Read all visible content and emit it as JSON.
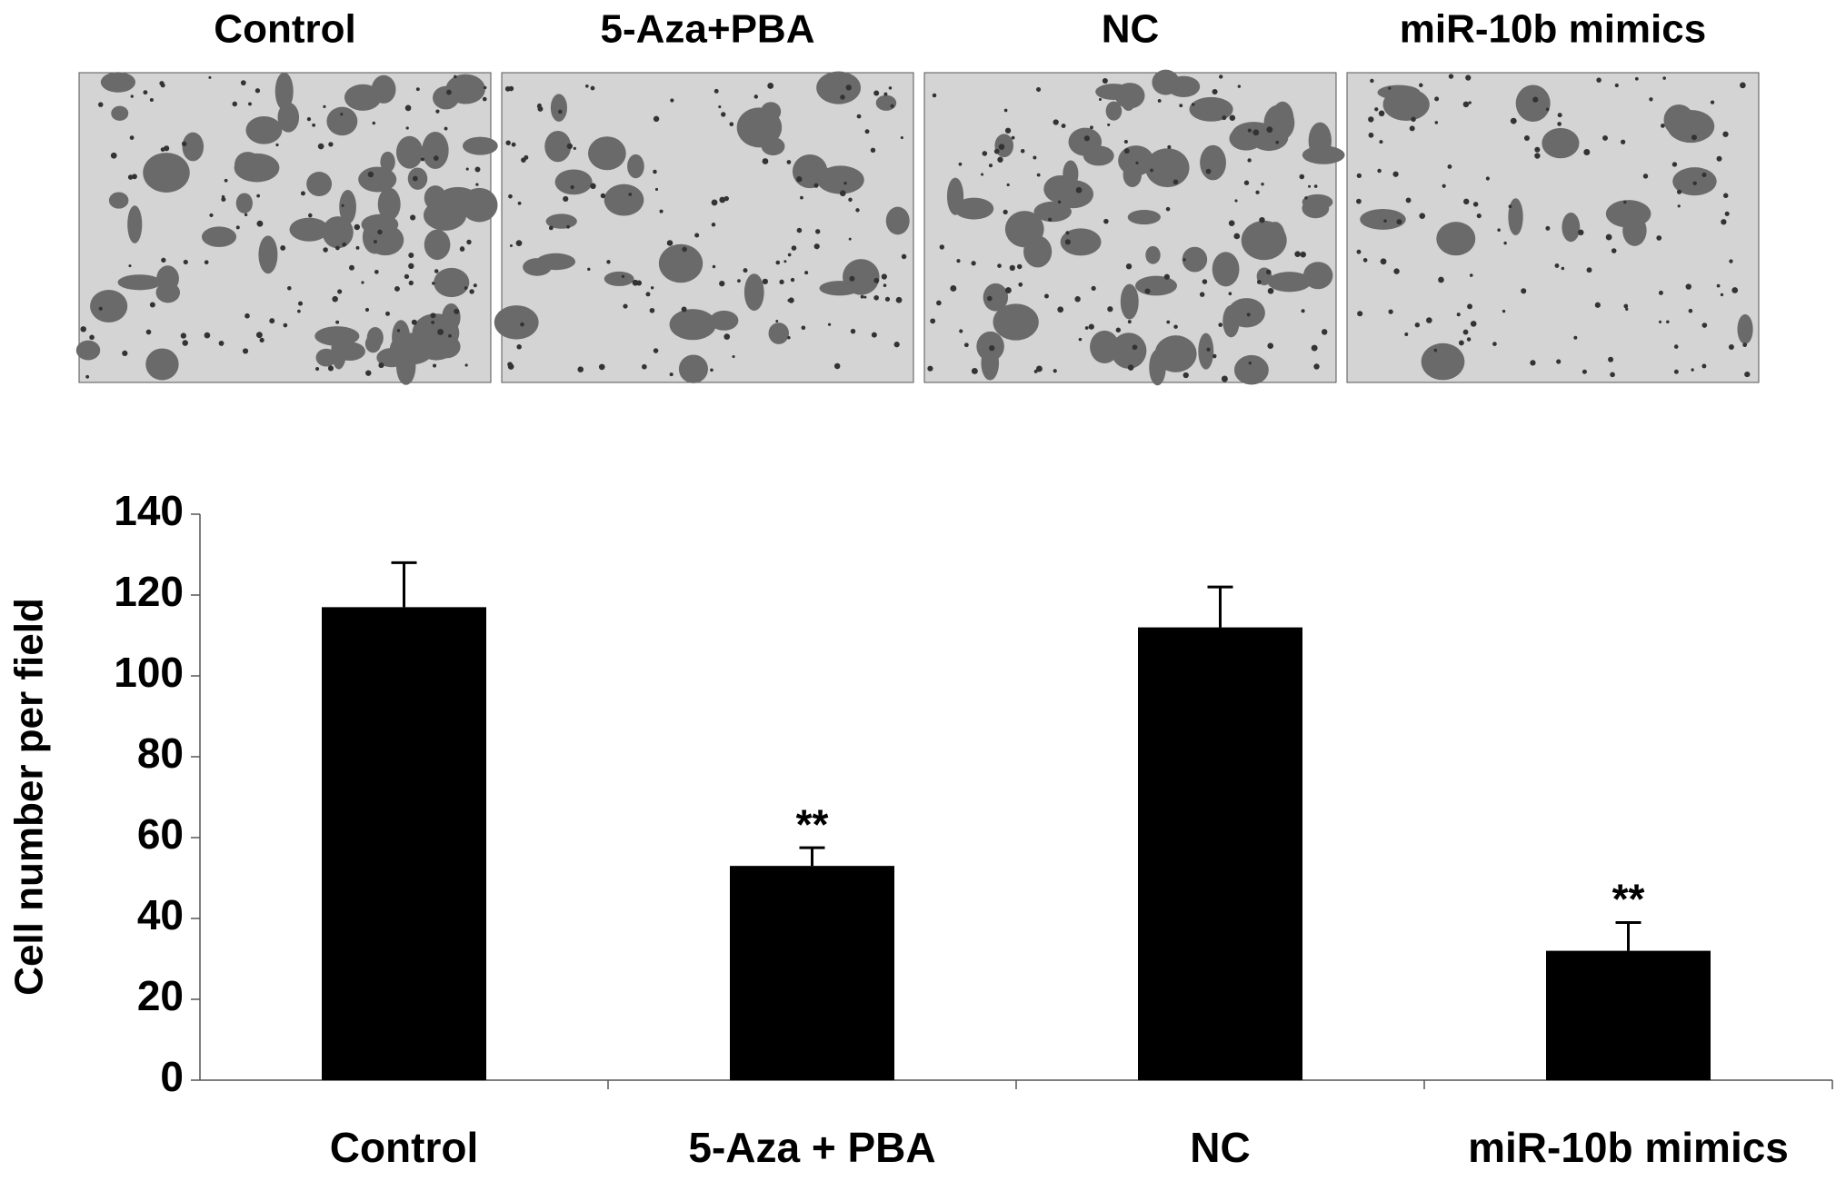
{
  "panels": {
    "labels": [
      "Control",
      "5-Aza+PBA",
      "NC",
      "miR-10b mimics"
    ]
  },
  "chart_data": {
    "type": "bar",
    "ylabel": "Cell number per field",
    "categories": [
      "Control",
      "5-Aza + PBA",
      "NC",
      "miR-10b mimics"
    ],
    "values": [
      117,
      53,
      112,
      32
    ],
    "errors": [
      11,
      4.5,
      10,
      7
    ],
    "significance": [
      null,
      "**",
      null,
      "**"
    ],
    "color": "#000000",
    "ylim": [
      0,
      140
    ],
    "yticks": [
      0,
      20,
      40,
      60,
      80,
      100,
      120,
      140
    ]
  }
}
